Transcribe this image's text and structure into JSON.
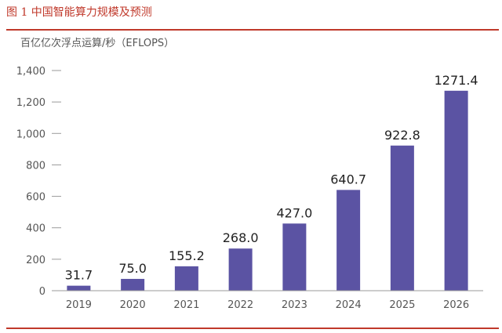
{
  "figure_title": "图 1 中国智能算力规模及预测",
  "colors": {
    "accent": "#c0392b",
    "bar": "#5b53a3",
    "axis": "#9a9a9a",
    "text": "#555555"
  },
  "chart_data": {
    "type": "bar",
    "title": "",
    "unit_label": "百亿亿次浮点运算/秒（EFLOPS）",
    "xlabel": "",
    "ylabel": "",
    "categories": [
      "2019",
      "2020",
      "2021",
      "2022",
      "2023",
      "2024",
      "2025",
      "2026"
    ],
    "values": [
      31.7,
      75.0,
      155.2,
      268.0,
      427.0,
      640.7,
      922.8,
      1271.4
    ],
    "value_labels": [
      "31.7",
      "75.0",
      "155.2",
      "268.0",
      "427.0",
      "640.7",
      "922.8",
      "1271.4"
    ],
    "ylim": [
      0,
      1400
    ],
    "yticks": [
      0,
      200,
      400,
      600,
      800,
      1000,
      1200,
      1400
    ],
    "ytick_labels": [
      "0",
      "200",
      "400",
      "600",
      "800",
      "1,000",
      "1,200",
      "1,400"
    ],
    "grid": false,
    "legend": "none"
  }
}
